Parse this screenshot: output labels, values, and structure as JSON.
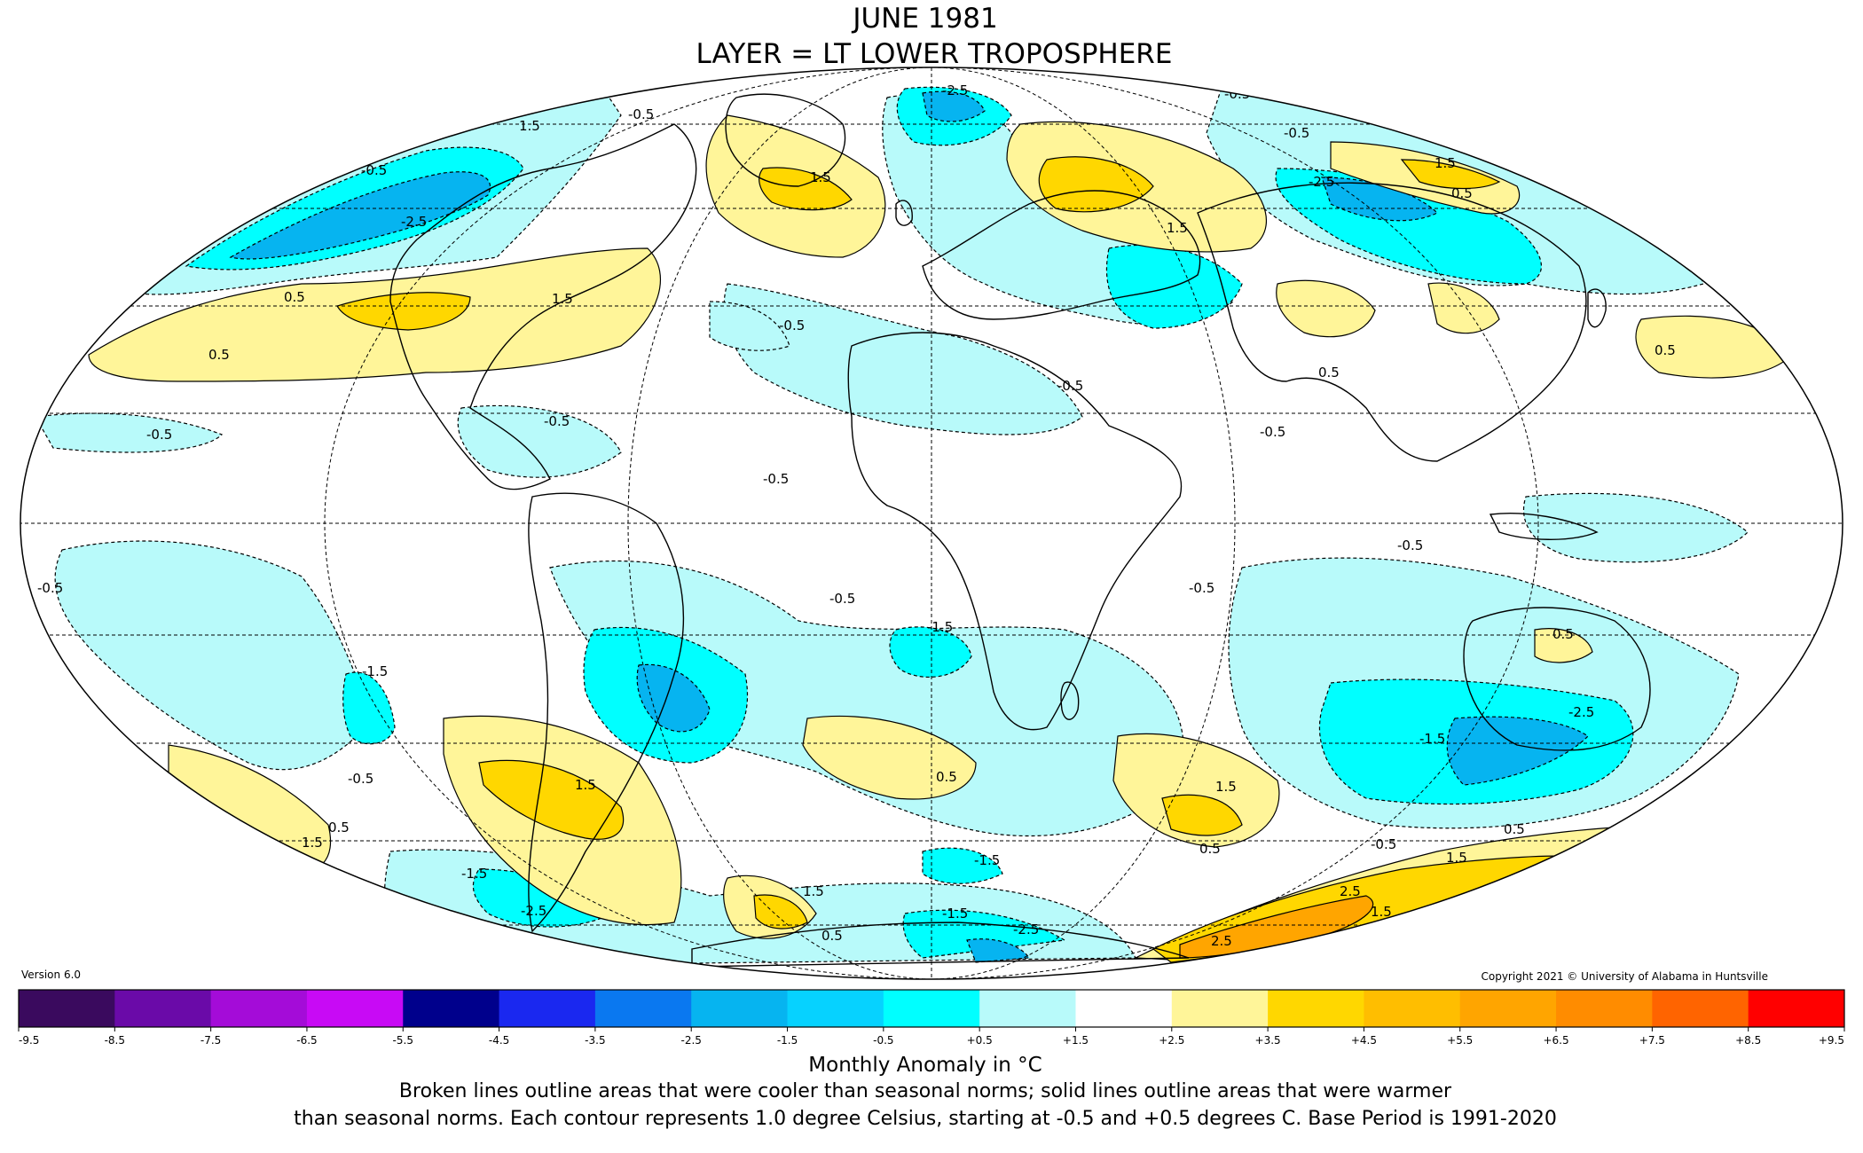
{
  "title": {
    "line1": "JUNE 1981",
    "line2": "LAYER = LT LOWER TROPOSPHERE"
  },
  "version": "Version 6.0",
  "copyright": "Copyright 2021 © University of Alabama in Huntsville",
  "legend": {
    "title": "Monthly Anomaly in °C",
    "ticks": [
      "-9.5",
      "-8.5",
      "-7.5",
      "-6.5",
      "-5.5",
      "-4.5",
      "-3.5",
      "-2.5",
      "-1.5",
      "-0.5",
      "+0.5",
      "+1.5",
      "+2.5",
      "+3.5",
      "+4.5",
      "+5.5",
      "+6.5",
      "+7.5",
      "+8.5",
      "+9.5"
    ],
    "colors": [
      "#3a0a5e",
      "#6a0aa8",
      "#a40cd8",
      "#c80af5",
      "#00008c",
      "#1a28f0",
      "#0a78f0",
      "#06b4f0",
      "#06d2ff",
      "#00ffff",
      "#b8fafa",
      "#ffffff",
      "#fff599",
      "#ffd700",
      "#ffbe00",
      "#ffa500",
      "#ff8c00",
      "#ff6400",
      "#ff0000",
      "#c00000"
    ]
  },
  "caption": {
    "line1": "Broken lines outline areas that were cooler than seasonal norms; solid lines outline areas that were warmer",
    "line2": "than seasonal norms. Each contour represents 1.0 degree Celsius, starting at -0.5 and +0.5 degrees C. Base Period is 1991-2020"
  },
  "palette": {
    "cool_light": "#b8fafa",
    "cool_mid": "#00ffff",
    "cool_deep": "#06b4f0",
    "warm_light": "#fff599",
    "warm_mid": "#ffd700",
    "warm_deep": "#ffa500"
  },
  "contour_labels": [
    {
      "text": "-0.5"
    },
    {
      "text": "-0.5"
    },
    {
      "text": "-0.5"
    },
    {
      "text": "-0.5"
    },
    {
      "text": "-0.5"
    },
    {
      "text": "-0.5"
    },
    {
      "text": "-0.5"
    },
    {
      "text": "-0.5"
    },
    {
      "text": "-0.5"
    },
    {
      "text": "-0.5"
    },
    {
      "text": "-0.5"
    },
    {
      "text": "-0.5"
    },
    {
      "text": "-0.5"
    },
    {
      "text": "-0.5"
    },
    {
      "text": "-0.5"
    },
    {
      "text": "-0.5"
    },
    {
      "text": "0.5"
    },
    {
      "text": "0.5"
    },
    {
      "text": "0.5"
    },
    {
      "text": "0.5"
    },
    {
      "text": "0.5"
    },
    {
      "text": "0.5"
    },
    {
      "text": "0.5"
    },
    {
      "text": "0.5"
    },
    {
      "text": "0.5"
    },
    {
      "text": "0.5"
    },
    {
      "text": "0.5"
    },
    {
      "text": "1.5"
    },
    {
      "text": "1.5"
    },
    {
      "text": "1.5"
    },
    {
      "text": "1.5"
    },
    {
      "text": "1.5"
    },
    {
      "text": "1.5"
    },
    {
      "text": "1.5"
    },
    {
      "text": "1.5"
    },
    {
      "text": "1.5"
    },
    {
      "text": "1.5"
    },
    {
      "text": "1.5"
    },
    {
      "text": "-1.5"
    },
    {
      "text": "-1.5"
    },
    {
      "text": "-1.5"
    },
    {
      "text": "-1.5"
    },
    {
      "text": "-1.5"
    },
    {
      "text": "-1.5"
    },
    {
      "text": "-2.5"
    },
    {
      "text": "-2.5"
    },
    {
      "text": "-2.5"
    },
    {
      "text": "-2.5"
    },
    {
      "text": "-2.5"
    },
    {
      "text": "-2.5"
    },
    {
      "text": "2.5"
    },
    {
      "text": "2.5"
    }
  ]
}
